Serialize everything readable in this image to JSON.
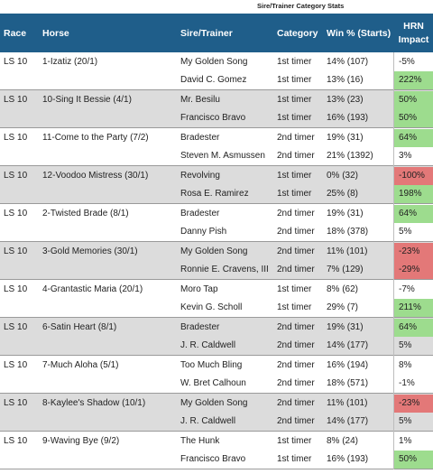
{
  "title": "Sire/Trainer Category Stats",
  "headers": {
    "race": "Race",
    "horse": "Horse",
    "sire_trainer": "Sire/Trainer",
    "category": "Category",
    "win": "Win % (Starts)",
    "hrn_line1": "HRN",
    "hrn_line2": "Impact"
  },
  "colors": {
    "header_bg": "#1f5e8a",
    "positive": "#9ddc8e",
    "negative": "#e37878",
    "shaded_row": "#dcdcdc"
  },
  "groups": [
    {
      "race": "LS 10",
      "horse": "1-Izatiz (20/1)",
      "rows": [
        {
          "name": "My Golden Song",
          "category": "1st timer",
          "win": "14% (107)",
          "hrn": "-5%",
          "hrn_tone": "none"
        },
        {
          "name": "David C. Gomez",
          "category": "1st timer",
          "win": "13% (16)",
          "hrn": "222%",
          "hrn_tone": "positive"
        }
      ]
    },
    {
      "race": "LS 10",
      "horse": "10-Sing It Bessie (4/1)",
      "rows": [
        {
          "name": "Mr. Besilu",
          "category": "1st timer",
          "win": "13% (23)",
          "hrn": "50%",
          "hrn_tone": "positive"
        },
        {
          "name": "Francisco Bravo",
          "category": "1st timer",
          "win": "16% (193)",
          "hrn": "50%",
          "hrn_tone": "positive"
        }
      ]
    },
    {
      "race": "LS 10",
      "horse": "11-Come to the Party (7/2)",
      "rows": [
        {
          "name": "Bradester",
          "category": "2nd timer",
          "win": "19% (31)",
          "hrn": "64%",
          "hrn_tone": "positive"
        },
        {
          "name": "Steven M. Asmussen",
          "category": "2nd timer",
          "win": "21% (1392)",
          "hrn": "3%",
          "hrn_tone": "none"
        }
      ]
    },
    {
      "race": "LS 10",
      "horse": "12-Voodoo Mistress (30/1)",
      "rows": [
        {
          "name": "Revolving",
          "category": "1st timer",
          "win": "0% (32)",
          "hrn": "-100%",
          "hrn_tone": "negative"
        },
        {
          "name": "Rosa E. Ramirez",
          "category": "1st timer",
          "win": "25% (8)",
          "hrn": "198%",
          "hrn_tone": "positive"
        }
      ]
    },
    {
      "race": "LS 10",
      "horse": "2-Twisted Brade (8/1)",
      "rows": [
        {
          "name": "Bradester",
          "category": "2nd timer",
          "win": "19% (31)",
          "hrn": "64%",
          "hrn_tone": "positive"
        },
        {
          "name": "Danny Pish",
          "category": "2nd timer",
          "win": "18% (378)",
          "hrn": "5%",
          "hrn_tone": "none"
        }
      ]
    },
    {
      "race": "LS 10",
      "horse": "3-Gold Memories (30/1)",
      "rows": [
        {
          "name": "My Golden Song",
          "category": "2nd timer",
          "win": "11% (101)",
          "hrn": "-23%",
          "hrn_tone": "negative"
        },
        {
          "name": "Ronnie E. Cravens, III",
          "category": "2nd timer",
          "win": "7% (129)",
          "hrn": "-29%",
          "hrn_tone": "negative"
        }
      ]
    },
    {
      "race": "LS 10",
      "horse": "4-Grantastic Maria (20/1)",
      "rows": [
        {
          "name": "Moro Tap",
          "category": "1st timer",
          "win": "8% (62)",
          "hrn": "-7%",
          "hrn_tone": "none"
        },
        {
          "name": "Kevin G. Scholl",
          "category": "1st timer",
          "win": "29% (7)",
          "hrn": "211%",
          "hrn_tone": "positive"
        }
      ]
    },
    {
      "race": "LS 10",
      "horse": "6-Satin Heart (8/1)",
      "rows": [
        {
          "name": "Bradester",
          "category": "2nd timer",
          "win": "19% (31)",
          "hrn": "64%",
          "hrn_tone": "positive"
        },
        {
          "name": "J. R. Caldwell",
          "category": "2nd timer",
          "win": "14% (177)",
          "hrn": "5%",
          "hrn_tone": "none"
        }
      ]
    },
    {
      "race": "LS 10",
      "horse": "7-Much Aloha (5/1)",
      "rows": [
        {
          "name": "Too Much Bling",
          "category": "2nd timer",
          "win": "16% (194)",
          "hrn": "8%",
          "hrn_tone": "none"
        },
        {
          "name": "W. Bret Calhoun",
          "category": "2nd timer",
          "win": "18% (571)",
          "hrn": "-1%",
          "hrn_tone": "none"
        }
      ]
    },
    {
      "race": "LS 10",
      "horse": "8-Kaylee's Shadow (10/1)",
      "rows": [
        {
          "name": "My Golden Song",
          "category": "2nd timer",
          "win": "11% (101)",
          "hrn": "-23%",
          "hrn_tone": "negative"
        },
        {
          "name": "J. R. Caldwell",
          "category": "2nd timer",
          "win": "14% (177)",
          "hrn": "5%",
          "hrn_tone": "none"
        }
      ]
    },
    {
      "race": "LS 10",
      "horse": "9-Waving Bye (9/2)",
      "rows": [
        {
          "name": "The Hunk",
          "category": "1st timer",
          "win": "8% (24)",
          "hrn": "1%",
          "hrn_tone": "none"
        },
        {
          "name": "Francisco Bravo",
          "category": "1st timer",
          "win": "16% (193)",
          "hrn": "50%",
          "hrn_tone": "positive"
        }
      ]
    }
  ]
}
